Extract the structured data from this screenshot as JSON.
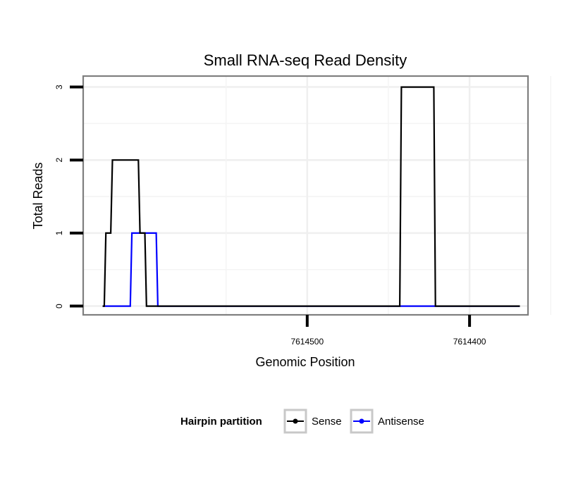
{
  "chart_data": {
    "type": "line",
    "title": "Small RNA-seq Read Density",
    "xlabel": "Genomic Position",
    "ylabel": "Total Reads",
    "x_reversed": true,
    "xlim": [
      7614638,
      7614364
    ],
    "ylim": [
      -0.12,
      3.15
    ],
    "x_ticks": [
      7614500,
      7614400
    ],
    "x_tick_labels": [
      "7614500",
      "7614400"
    ],
    "y_ticks": [
      0,
      1,
      2,
      3
    ],
    "y_tick_labels": [
      "0",
      "1",
      "2",
      "3"
    ],
    "grid": true,
    "legend": {
      "title": "Hairpin partition",
      "position": "bottom"
    },
    "series": [
      {
        "name": "Sense",
        "color": "#000000",
        "x": [
          7614626,
          7614625,
          7614624,
          7614621,
          7614620,
          7614604,
          7614603,
          7614600,
          7614599,
          7614597,
          7614596,
          7614443,
          7614442,
          7614422,
          7614421,
          7614369
        ],
        "y": [
          0,
          0,
          1,
          1,
          2,
          2,
          1,
          1,
          0,
          0,
          0,
          0,
          3,
          3,
          0,
          0
        ]
      },
      {
        "name": "Antisense",
        "color": "#0000ff",
        "x": [
          7614626,
          7614609,
          7614608,
          7614593,
          7614592,
          7614443,
          7614442,
          7614421,
          7614420,
          7614369
        ],
        "y": [
          0,
          0,
          1,
          1,
          0,
          0,
          0,
          0,
          0,
          0
        ]
      }
    ]
  }
}
